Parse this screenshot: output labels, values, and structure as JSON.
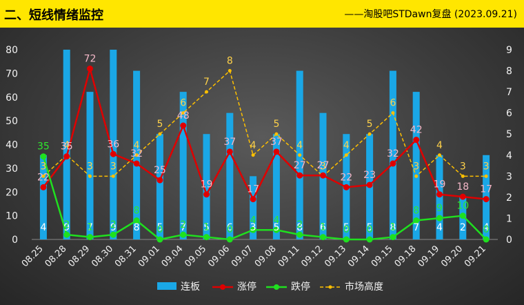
{
  "header": {
    "title": "二、短线情绪监控",
    "subtitle": "——淘股吧STDawn复盘 (2023.09.21)"
  },
  "colors": {
    "bar": "#1aa7e6",
    "zhangting": "#e00000",
    "dieting": "#1fe01f",
    "gaodu": "#ffc000",
    "zt_label": "#f4b8c8",
    "dt_label": "#2ee82e",
    "gd_label": "#ffd24a",
    "bar_label": "#ffffff"
  },
  "chart_data": {
    "type": "bar",
    "categories": [
      "08.25",
      "08.28",
      "08.29",
      "08.30",
      "08.31",
      "09.01",
      "09.04",
      "09.05",
      "09.06",
      "09.07",
      "09.08",
      "09.11",
      "09.12",
      "09.13",
      "09.14",
      "09.15",
      "09.18",
      "09.19",
      "09.20",
      "09.21"
    ],
    "y_left": {
      "ylim": [
        0,
        80
      ],
      "ticks": [
        "0",
        "10",
        "20",
        "30",
        "40",
        "50",
        "60",
        "70",
        "80"
      ]
    },
    "y_right": {
      "ylim": [
        0,
        9
      ],
      "ticks": [
        "0",
        "1",
        "2",
        "3",
        "4",
        "5",
        "6",
        "7",
        "8",
        "9"
      ]
    },
    "series": [
      {
        "name": "连板",
        "type": "bar",
        "axis": "right",
        "values": [
          4,
          9,
          7,
          9,
          8,
          5,
          7,
          5,
          6,
          3,
          5,
          8,
          6,
          5,
          5,
          8,
          7,
          4,
          2,
          4
        ]
      },
      {
        "name": "涨停",
        "type": "line",
        "axis": "left",
        "values": [
          22,
          35,
          72,
          36,
          32,
          25,
          48,
          19,
          37,
          17,
          37,
          27,
          27,
          22,
          23,
          32,
          42,
          19,
          18,
          17
        ]
      },
      {
        "name": "跌停",
        "type": "line",
        "axis": "left",
        "values": [
          35,
          2,
          1,
          2,
          8,
          0,
          2,
          1,
          0,
          4,
          4,
          2,
          1,
          0,
          0,
          1,
          8,
          9,
          10,
          0
        ]
      },
      {
        "name": "市场高度",
        "type": "line",
        "style": "dashed",
        "axis": "right",
        "values": [
          3,
          4,
          3,
          3,
          4,
          5,
          6,
          7,
          8,
          4,
          5,
          4,
          3,
          4,
          5,
          6,
          3,
          4,
          3,
          3
        ]
      }
    ],
    "legend_position": "bottom"
  }
}
